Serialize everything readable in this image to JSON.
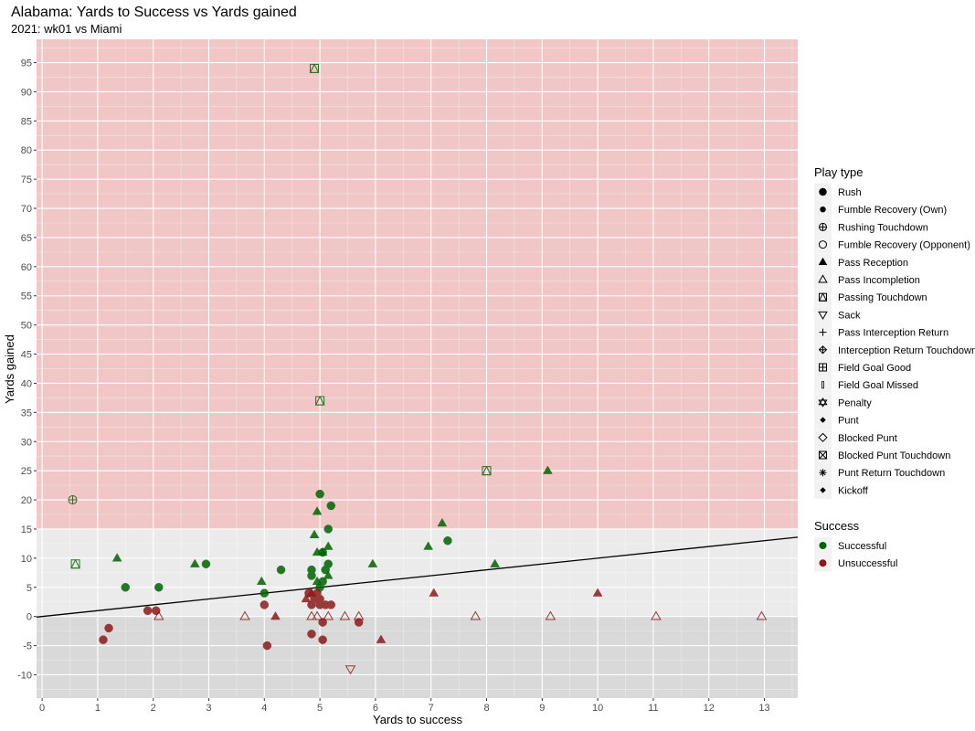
{
  "chart_data": {
    "type": "scatter",
    "title": "Alabama: Yards to Success vs Yards gained",
    "subtitle": "2021: wk01 vs Miami",
    "xlabel": "Yards to success",
    "ylabel": "Yards gained",
    "xlim": [
      -0.1,
      13.6
    ],
    "ylim": [
      -14,
      99
    ],
    "xticks": [
      "0",
      "1",
      "2",
      "3",
      "4",
      "5",
      "6",
      "7",
      "8",
      "9",
      "10",
      "11",
      "12",
      "13"
    ],
    "yticks": [
      "-10",
      "-5",
      "0",
      "5",
      "10",
      "15",
      "20",
      "25",
      "30",
      "35",
      "40",
      "45",
      "50",
      "55",
      "60",
      "65",
      "70",
      "75",
      "80",
      "85",
      "90",
      "95"
    ],
    "grid": true,
    "legend_position": "right",
    "bands": [
      {
        "from": 15,
        "to": 99,
        "color": "#f0c6c6"
      },
      {
        "from": 0,
        "to": 15,
        "color": "#ebebeb"
      },
      {
        "from": -14,
        "to": 0,
        "color": "#d9d9d9"
      }
    ],
    "trend_line": {
      "x": [
        -0.1,
        13.6
      ],
      "y": [
        -0.1,
        13.6
      ]
    },
    "colors": {
      "Successful": "#006400",
      "Unsuccessful": "#8b1a1a"
    },
    "shape_legend": {
      "title": "Play type",
      "items": [
        {
          "label": "Rush",
          "shape": "filled-circle"
        },
        {
          "label": "Fumble Recovery (Own)",
          "shape": "filled-circle-small"
        },
        {
          "label": "Rushing Touchdown",
          "shape": "circle-plus"
        },
        {
          "label": "Fumble Recovery (Opponent)",
          "shape": "open-circle"
        },
        {
          "label": "Pass Reception",
          "shape": "filled-triangle"
        },
        {
          "label": "Pass Incompletion",
          "shape": "open-triangle"
        },
        {
          "label": "Passing Touchdown",
          "shape": "square-triangle"
        },
        {
          "label": "Sack",
          "shape": "open-triangle-down"
        },
        {
          "label": "Pass Interception Return",
          "shape": "plus"
        },
        {
          "label": "Interception Return Touchdown",
          "shape": "diamond-plus"
        },
        {
          "label": "Field Goal Good",
          "shape": "square-plus"
        },
        {
          "label": "Field Goal Missed",
          "shape": "thin-rect"
        },
        {
          "label": "Penalty",
          "shape": "star-of-david"
        },
        {
          "label": "Punt",
          "shape": "filled-diamond"
        },
        {
          "label": "Blocked Punt",
          "shape": "open-diamond"
        },
        {
          "label": "Blocked Punt Touchdown",
          "shape": "square-x"
        },
        {
          "label": "Punt Return Touchdown",
          "shape": "asterisk"
        },
        {
          "label": "Kickoff",
          "shape": "filled-diamond"
        }
      ]
    },
    "color_legend": {
      "title": "Success",
      "items": [
        {
          "label": "Successful",
          "color": "#006400"
        },
        {
          "label": "Unsuccessful",
          "color": "#8b1a1a"
        }
      ]
    },
    "series": [
      {
        "name": "Rush",
        "shape": "filled-circle",
        "success": "Successful",
        "points": [
          [
            1.5,
            5
          ],
          [
            2.1,
            5
          ],
          [
            2.95,
            9
          ],
          [
            4.0,
            4
          ],
          [
            4.3,
            8
          ],
          [
            4.85,
            8
          ],
          [
            4.85,
            7
          ],
          [
            5.0,
            21
          ],
          [
            5.2,
            19
          ],
          [
            5.15,
            15
          ],
          [
            5.05,
            11
          ],
          [
            5.15,
            9
          ],
          [
            5.1,
            8
          ],
          [
            5.05,
            6
          ],
          [
            5.0,
            5
          ],
          [
            7.3,
            13
          ]
        ]
      },
      {
        "name": "Rush",
        "shape": "filled-circle",
        "success": "Unsuccessful",
        "points": [
          [
            1.9,
            1
          ],
          [
            2.05,
            1
          ],
          [
            1.2,
            -2
          ],
          [
            1.1,
            -4
          ],
          [
            4.0,
            2
          ],
          [
            4.05,
            -5
          ],
          [
            4.85,
            -3
          ],
          [
            5.05,
            -4
          ],
          [
            5.05,
            -1
          ],
          [
            5.7,
            -1
          ],
          [
            4.8,
            4
          ],
          [
            4.9,
            3
          ],
          [
            5.0,
            3
          ],
          [
            5.0,
            2
          ],
          [
            4.85,
            2
          ],
          [
            5.1,
            2
          ],
          [
            5.2,
            2
          ],
          [
            4.95,
            4
          ]
        ]
      },
      {
        "name": "Rushing Touchdown",
        "shape": "circle-plus",
        "success": "Successful",
        "points": [
          [
            0.55,
            20
          ]
        ]
      },
      {
        "name": "Pass Reception",
        "shape": "filled-triangle",
        "success": "Successful",
        "points": [
          [
            1.35,
            10
          ],
          [
            2.75,
            9
          ],
          [
            3.95,
            6
          ],
          [
            4.9,
            14
          ],
          [
            4.95,
            18
          ],
          [
            4.95,
            11
          ],
          [
            5.05,
            11
          ],
          [
            5.15,
            12
          ],
          [
            4.95,
            6
          ],
          [
            5.15,
            7
          ],
          [
            5.95,
            9
          ],
          [
            6.95,
            12
          ],
          [
            7.2,
            16
          ],
          [
            8.15,
            9
          ],
          [
            9.1,
            25
          ]
        ]
      },
      {
        "name": "Pass Reception",
        "shape": "filled-triangle",
        "success": "Unsuccessful",
        "points": [
          [
            4.2,
            0
          ],
          [
            4.75,
            3
          ],
          [
            4.85,
            4
          ],
          [
            6.1,
            -4
          ],
          [
            7.05,
            4
          ],
          [
            10.0,
            4
          ]
        ]
      },
      {
        "name": "Pass Incompletion",
        "shape": "open-triangle",
        "success": "Unsuccessful",
        "points": [
          [
            2.1,
            0
          ],
          [
            3.65,
            0
          ],
          [
            4.85,
            0
          ],
          [
            4.95,
            0
          ],
          [
            5.15,
            0
          ],
          [
            5.45,
            0
          ],
          [
            5.7,
            0
          ],
          [
            7.8,
            0
          ],
          [
            9.15,
            0
          ],
          [
            11.05,
            0
          ],
          [
            12.95,
            0
          ]
        ]
      },
      {
        "name": "Passing Touchdown",
        "shape": "square-triangle",
        "success": "Successful",
        "points": [
          [
            0.6,
            9
          ],
          [
            4.9,
            94
          ],
          [
            5.0,
            37
          ],
          [
            8.0,
            25
          ]
        ]
      },
      {
        "name": "Sack",
        "shape": "open-triangle-down",
        "success": "Unsuccessful",
        "points": [
          [
            5.55,
            -9
          ]
        ]
      }
    ]
  }
}
